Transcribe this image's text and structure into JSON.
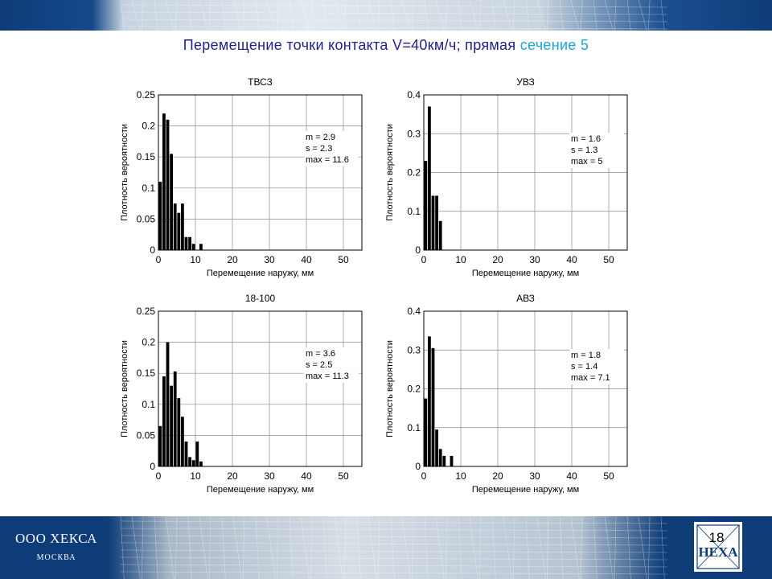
{
  "slide": {
    "title_main": "Перемещение точки контакта  V=40км/ч; прямая ",
    "title_accent": "сечение 5",
    "company": "ООО ХЕКСА",
    "city": "МОСКВА",
    "logo_text": "HEXA",
    "page_number": "18",
    "colors": {
      "brand_blue": "#0d3c78",
      "title": "#1f1f8f",
      "accent": "#1da4d9"
    }
  },
  "chart_data": [
    {
      "type": "bar",
      "title": "ТВСЗ",
      "xlabel": "Перемещение наружу, мм",
      "ylabel": "Плотность вероятности",
      "xlim": [
        0,
        55
      ],
      "ylim": [
        0,
        0.25
      ],
      "xticks": [
        "0",
        "10",
        "20",
        "30",
        "40",
        "50"
      ],
      "yticks": [
        "0",
        "0.05",
        "0.1",
        "0.15",
        "0.2",
        "0.25"
      ],
      "grid": true,
      "bin_width": 1,
      "x": [
        0.5,
        1.5,
        2.5,
        3.5,
        4.5,
        5.5,
        6.5,
        7.5,
        8.5,
        9.5,
        10.5,
        11.5
      ],
      "values": [
        0.11,
        0.22,
        0.21,
        0.155,
        0.075,
        0.06,
        0.075,
        0.021,
        0.021,
        0.01,
        0,
        0.01
      ],
      "annotation": [
        "m = 2.9",
        "s  = 2.3",
        "max  = 11.6"
      ]
    },
    {
      "type": "bar",
      "title": "УВЗ",
      "xlabel": "Перемещение наружу, мм",
      "ylabel": "Плотность вероятности",
      "xlim": [
        0,
        55
      ],
      "ylim": [
        0,
        0.4
      ],
      "xticks": [
        "0",
        "10",
        "20",
        "30",
        "40",
        "50"
      ],
      "yticks": [
        "0",
        "0.1",
        "0.2",
        "0.3",
        "0.4"
      ],
      "grid": true,
      "bin_width": 1,
      "x": [
        0.5,
        1.5,
        2.5,
        3.5,
        4.5
      ],
      "values": [
        0.23,
        0.37,
        0.14,
        0.14,
        0.075
      ],
      "annotation": [
        "m = 1.6",
        "s  = 1.3",
        "max  = 5"
      ]
    },
    {
      "type": "bar",
      "title": "18-100",
      "xlabel": "Перемещение наружу, мм",
      "ylabel": "Плотность вероятности",
      "xlim": [
        0,
        55
      ],
      "ylim": [
        0,
        0.25
      ],
      "xticks": [
        "0",
        "10",
        "20",
        "30",
        "40",
        "50"
      ],
      "yticks": [
        "0",
        "0.05",
        "0.1",
        "0.15",
        "0.2",
        "0.25"
      ],
      "grid": true,
      "bin_width": 1,
      "x": [
        0.5,
        1.5,
        2.5,
        3.5,
        4.5,
        5.5,
        6.5,
        7.5,
        8.5,
        9.5,
        10.5,
        11.5
      ],
      "values": [
        0.065,
        0.145,
        0.2,
        0.13,
        0.153,
        0.11,
        0.08,
        0.04,
        0.015,
        0.01,
        0.04,
        0.008
      ],
      "annotation": [
        "m = 3.6",
        "s  = 2.5",
        "max  = 11.3"
      ]
    },
    {
      "type": "bar",
      "title": "АВЗ",
      "xlabel": "Перемещение наружу, мм",
      "ylabel": "Плотность вероятности",
      "xlim": [
        0,
        55
      ],
      "ylim": [
        0,
        0.4
      ],
      "xticks": [
        "0",
        "10",
        "20",
        "30",
        "40",
        "50"
      ],
      "yticks": [
        "0",
        "0.1",
        "0.2",
        "0.3",
        "0.4"
      ],
      "grid": true,
      "bin_width": 1,
      "x": [
        0.5,
        1.5,
        2.5,
        3.5,
        4.5,
        5.5,
        6.5,
        7.5
      ],
      "values": [
        0.175,
        0.335,
        0.305,
        0.095,
        0.045,
        0.027,
        0,
        0.027
      ],
      "annotation": [
        "m = 1.8",
        "s  = 1.4",
        "max  = 7.1"
      ]
    }
  ]
}
